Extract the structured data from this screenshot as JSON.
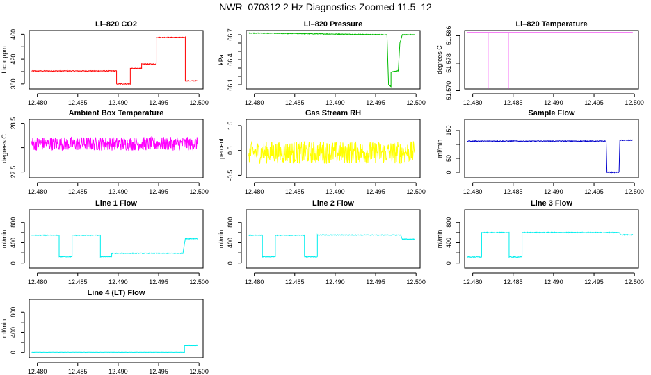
{
  "figure": {
    "title": "NWR_070312  2 Hz Diagnostics Zoomed 11.5–12"
  },
  "chart_data": [
    {
      "type": "line",
      "title": "Li–820 CO2",
      "ylabel": "Licor ppm",
      "xlim": [
        12.479,
        12.5005
      ],
      "ylim": [
        372,
        466
      ],
      "x_ticks": [
        "12.480",
        "12.485",
        "12.490",
        "12.495",
        "12.500"
      ],
      "y_ticks": [
        380,
        400,
        420,
        440,
        460
      ],
      "y_tick_labels": [
        "380",
        "",
        "420",
        "",
        "460"
      ],
      "color": "#ff0000",
      "noise": 0.6,
      "series": [
        {
          "x": [
            12.4793,
            12.4898,
            12.4898,
            12.4915,
            12.4915,
            12.4929,
            12.4929,
            12.4947,
            12.4947,
            12.4983,
            12.4983,
            12.4998
          ],
          "y": [
            401,
            401,
            380,
            380,
            405,
            405,
            412,
            412,
            455,
            455,
            385,
            385
          ]
        }
      ]
    },
    {
      "type": "line",
      "title": "Li–820 Pressure",
      "ylabel": "kPa",
      "xlim": [
        12.479,
        12.5005
      ],
      "ylim": [
        66.05,
        66.75
      ],
      "x_ticks": [
        "12.480",
        "12.485",
        "12.490",
        "12.495",
        "12.500"
      ],
      "y_ticks": [
        66.1,
        66.2,
        66.3,
        66.4,
        66.5,
        66.6,
        66.7
      ],
      "y_tick_labels": [
        "66.1",
        "",
        "",
        "66.4",
        "",
        "",
        "66.7"
      ],
      "color": "#00bb00",
      "noise": 0.004,
      "series": [
        {
          "x": [
            12.4793,
            12.4964,
            12.4966,
            12.4969,
            12.4969,
            12.4978,
            12.498,
            12.4983,
            12.4998
          ],
          "y": [
            66.72,
            66.7,
            66.1,
            66.08,
            66.25,
            66.27,
            66.6,
            66.7,
            66.7
          ]
        }
      ]
    },
    {
      "type": "line",
      "title": "Li–820 Temperature",
      "ylabel": "degrees C",
      "xlim": [
        12.479,
        12.5005
      ],
      "ylim": [
        51.5705,
        51.5875
      ],
      "x_ticks": [
        "12.480",
        "12.485",
        "12.490",
        "12.495",
        "12.500"
      ],
      "y_ticks": [
        51.57,
        51.578,
        51.586
      ],
      "y_tick_labels": [
        "51.570",
        "51.578",
        "51.586"
      ],
      "color": "#ee00ee",
      "noise": 0,
      "series": [
        {
          "x": [
            12.4793,
            12.4819,
            12.4819,
            12.4819,
            12.4844,
            12.4844,
            12.4844,
            12.4998
          ],
          "y": [
            51.5869,
            51.5869,
            51.5705,
            51.5869,
            51.5869,
            51.5705,
            51.5869,
            51.5869
          ]
        }
      ]
    },
    {
      "type": "line",
      "title": "Ambient Box Temperature",
      "ylabel": "degrees C",
      "xlim": [
        12.479,
        12.5005
      ],
      "ylim": [
        27.38,
        28.58
      ],
      "x_ticks": [
        "12.480",
        "12.485",
        "12.490",
        "12.495",
        "12.500"
      ],
      "y_ticks": [
        27.5,
        28.0,
        28.5
      ],
      "y_tick_labels": [
        "27.5",
        "",
        "28.5"
      ],
      "color": "#ff00ff",
      "noise": 0.14,
      "series": [
        {
          "x": [
            12.4793,
            12.4998
          ],
          "y": [
            28.08,
            28.08
          ]
        }
      ]
    },
    {
      "type": "line",
      "title": "Gas Stream RH",
      "ylabel": "percent",
      "xlim": [
        12.479,
        12.5005
      ],
      "ylim": [
        -0.6,
        1.75
      ],
      "x_ticks": [
        "12.480",
        "12.485",
        "12.490",
        "12.495",
        "12.500"
      ],
      "y_ticks": [
        -0.5,
        0.5,
        1.5
      ],
      "y_tick_labels": [
        "-0.5",
        "0.5",
        "1.5"
      ],
      "color": "#ffff00",
      "noise": 0.45,
      "series": [
        {
          "x": [
            12.4793,
            12.4998
          ],
          "y": [
            0.42,
            0.42
          ]
        }
      ]
    },
    {
      "type": "line",
      "title": "Sample Flow",
      "ylabel": "ml/min",
      "xlim": [
        12.479,
        12.5005
      ],
      "ylim": [
        -20,
        190
      ],
      "x_ticks": [
        "12.480",
        "12.485",
        "12.490",
        "12.495",
        "12.500"
      ],
      "y_ticks": [
        0,
        50,
        100,
        150
      ],
      "y_tick_labels": [
        "0",
        "50",
        "",
        "150"
      ],
      "color": "#0000cc",
      "noise": 1.4,
      "series": [
        {
          "x": [
            12.4793,
            12.4965,
            12.4966,
            12.4981,
            12.4982,
            12.4998
          ],
          "y": [
            112,
            112,
            0,
            0,
            115,
            115
          ]
        }
      ]
    },
    {
      "type": "line",
      "title": "Line 1 Flow",
      "ylabel": "ml/min",
      "xlim": [
        12.479,
        12.5005
      ],
      "ylim": [
        -100,
        1050
      ],
      "x_ticks": [
        "12.480",
        "12.485",
        "12.490",
        "12.495",
        "12.500"
      ],
      "y_ticks": [
        0,
        200,
        400,
        600,
        800
      ],
      "y_tick_labels": [
        "0",
        "",
        "400",
        "",
        "800"
      ],
      "color": "#00eeee",
      "noise": 7,
      "series": [
        {
          "x": [
            12.4793,
            12.4827,
            12.4827,
            12.4843,
            12.4843,
            12.4878,
            12.4878,
            12.4892,
            12.4892,
            12.498,
            12.4983,
            12.4998
          ],
          "y": [
            545,
            545,
            125,
            125,
            545,
            545,
            125,
            125,
            190,
            190,
            480,
            480
          ]
        }
      ]
    },
    {
      "type": "line",
      "title": "Line 2 Flow",
      "ylabel": "ml/min",
      "xlim": [
        12.479,
        12.5005
      ],
      "ylim": [
        -100,
        1050
      ],
      "x_ticks": [
        "12.480",
        "12.485",
        "12.490",
        "12.495",
        "12.500"
      ],
      "y_ticks": [
        0,
        200,
        400,
        600,
        800
      ],
      "y_tick_labels": [
        "0",
        "",
        "400",
        "",
        "800"
      ],
      "color": "#00eeee",
      "noise": 7,
      "series": [
        {
          "x": [
            12.4793,
            12.481,
            12.481,
            12.4826,
            12.4826,
            12.4862,
            12.4862,
            12.4878,
            12.4878,
            12.4981,
            12.4983,
            12.4998
          ],
          "y": [
            545,
            545,
            125,
            125,
            545,
            545,
            125,
            125,
            550,
            550,
            470,
            470
          ]
        }
      ]
    },
    {
      "type": "line",
      "title": "Line 3 Flow",
      "ylabel": "ml/min",
      "xlim": [
        12.479,
        12.5005
      ],
      "ylim": [
        -100,
        1050
      ],
      "x_ticks": [
        "12.480",
        "12.485",
        "12.490",
        "12.495",
        "12.500"
      ],
      "y_ticks": [
        0,
        200,
        400,
        600,
        800
      ],
      "y_tick_labels": [
        "0",
        "",
        "400",
        "",
        "800"
      ],
      "color": "#00eeee",
      "noise": 8,
      "series": [
        {
          "x": [
            12.4793,
            12.4811,
            12.4811,
            12.4845,
            12.4845,
            12.4861,
            12.4861,
            12.4981,
            12.4983,
            12.4998
          ],
          "y": [
            120,
            120,
            600,
            600,
            120,
            120,
            600,
            600,
            555,
            555
          ]
        }
      ]
    },
    {
      "type": "line",
      "title": "Line 4 (LT) Flow",
      "ylabel": "ml/min",
      "xlim": [
        12.479,
        12.5005
      ],
      "ylim": [
        -100,
        1050
      ],
      "x_ticks": [
        "12.480",
        "12.485",
        "12.490",
        "12.495",
        "12.500"
      ],
      "y_ticks": [
        0,
        200,
        400,
        600,
        800
      ],
      "y_tick_labels": [
        "0",
        "",
        "400",
        "",
        "800"
      ],
      "color": "#00eeee",
      "noise": 2,
      "series": [
        {
          "x": [
            12.4793,
            12.4982,
            12.4982,
            12.4998
          ],
          "y": [
            5,
            5,
            140,
            140
          ]
        }
      ]
    }
  ]
}
